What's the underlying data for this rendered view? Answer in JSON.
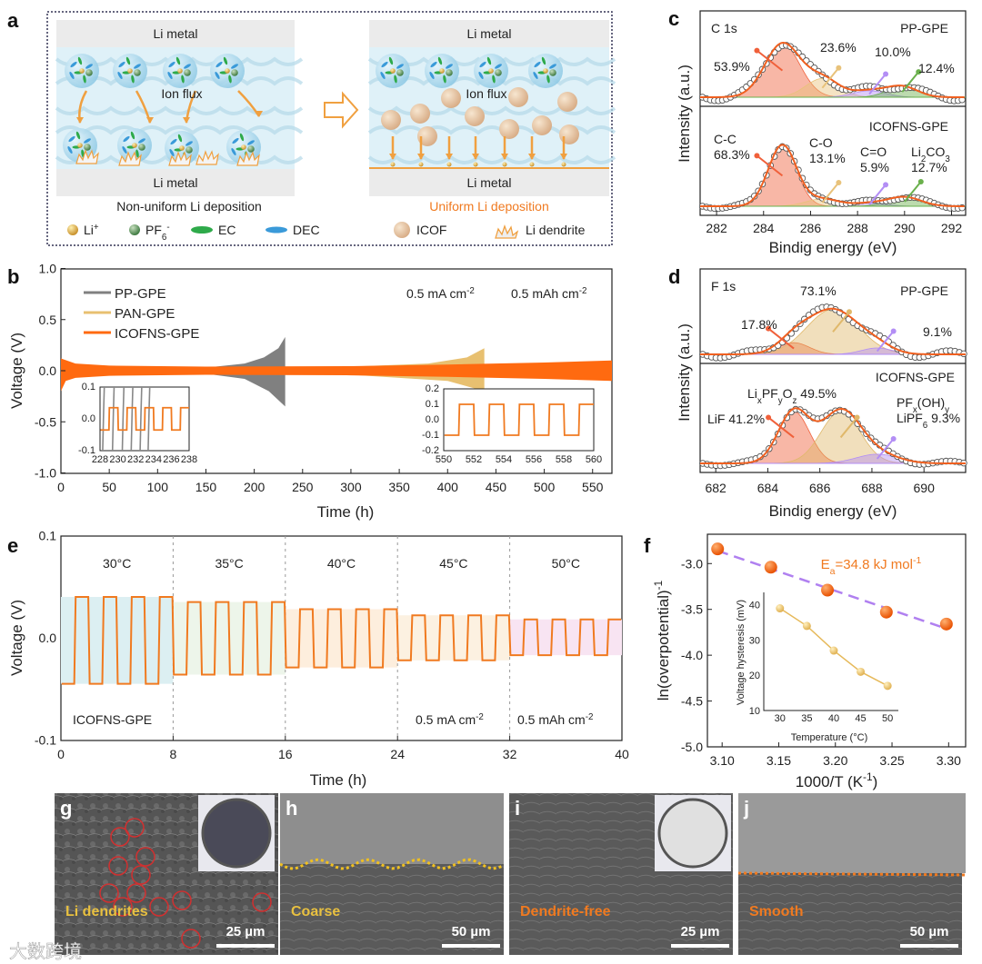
{
  "panel_labels": {
    "a": "a",
    "b": "b",
    "c": "c",
    "d": "d",
    "e": "e",
    "f": "f",
    "g": "g",
    "h": "h",
    "i": "i",
    "j": "j"
  },
  "panel_a": {
    "li_metal": "Li metal",
    "ion_flux": "Ion flux",
    "left_caption": "Non-uniform Li deposition",
    "right_caption": "Uniform Li deposition",
    "legend": [
      "Li^{+}",
      "PF_{6}^{-}",
      "EC",
      "DEC",
      "ICOF",
      "Li dendrite"
    ],
    "colors": {
      "li": "#e3b35a",
      "pf6": "#5f9a5c",
      "ec": "#2eaa4a",
      "dec": "#3a9ad9",
      "icof": "#e6c7a4",
      "arrow": "#f0a040",
      "uniform": "#f07a20"
    }
  },
  "chart_data": [
    {
      "type": "line",
      "id": "b",
      "xlabel": "Time (h)",
      "ylabel": "Voltage (V)",
      "xlim": [
        0,
        570
      ],
      "ylim": [
        -1.0,
        1.0
      ],
      "xticks": [
        0,
        50,
        100,
        150,
        200,
        250,
        300,
        350,
        400,
        450,
        500,
        550
      ],
      "yticks": [
        "1.0",
        "0.5",
        "0.0",
        "-0.5",
        "-1.0"
      ],
      "condition": [
        "0.5 mA cm^{-2}",
        "0.5 mAh cm^{-2}"
      ],
      "series": [
        {
          "name": "PP-GPE",
          "color": "#808080",
          "upper": [
            [
              150,
              0.03
            ],
            [
              190,
              0.07
            ],
            [
              210,
              0.13
            ],
            [
              225,
              0.22
            ],
            [
              232,
              0.33
            ]
          ],
          "lower": [
            [
              150,
              -0.03
            ],
            [
              190,
              -0.08
            ],
            [
              215,
              -0.2
            ],
            [
              232,
              -0.35
            ]
          ]
        },
        {
          "name": "PAN-GPE",
          "color": "#e8c070",
          "upper": [
            [
              300,
              0.04
            ],
            [
              380,
              0.07
            ],
            [
              420,
              0.13
            ],
            [
              438,
              0.22
            ]
          ],
          "lower": [
            [
              300,
              -0.04
            ],
            [
              400,
              -0.1
            ],
            [
              438,
              -0.2
            ]
          ]
        },
        {
          "name": "ICOFNS-GPE",
          "color": "#ff6a10",
          "upper": [
            [
              0,
              0.12
            ],
            [
              15,
              0.07
            ],
            [
              50,
              0.05
            ],
            [
              150,
              0.04
            ],
            [
              300,
              0.045
            ],
            [
              400,
              0.06
            ],
            [
              500,
              0.08
            ],
            [
              570,
              0.1
            ]
          ],
          "lower": [
            [
              0,
              -0.2
            ],
            [
              5,
              -0.1
            ],
            [
              15,
              -0.07
            ],
            [
              50,
              -0.05
            ],
            [
              150,
              -0.04
            ],
            [
              300,
              -0.045
            ],
            [
              400,
              -0.06
            ],
            [
              500,
              -0.08
            ],
            [
              570,
              -0.1
            ]
          ]
        }
      ],
      "insets": [
        {
          "xlim": [
            228,
            238
          ],
          "ylim": [
            -0.1,
            0.1
          ],
          "xticks": [
            228,
            230,
            232,
            234,
            236,
            238
          ],
          "yticks": [
            "0.1",
            "0.0",
            "-0.1"
          ],
          "icofns_amplitude": 0.035,
          "pp_transitions": [
            228.4,
            229.5,
            230.6,
            231.6,
            232.6,
            233.5
          ]
        },
        {
          "xlim": [
            550,
            560
          ],
          "ylim": [
            -0.2,
            0.2
          ],
          "xticks": [
            550,
            552,
            554,
            556,
            558,
            560
          ],
          "yticks": [
            "0.2",
            "0.1",
            "0.0",
            "-0.1",
            "-0.2"
          ],
          "icofns_amplitude": 0.1
        }
      ]
    },
    {
      "type": "scatter",
      "id": "c",
      "title": "C 1s",
      "xlabel": "Bindig energy (eV)",
      "ylabel": "Intensity (a.u.)",
      "xlim": [
        281.3,
        292.6
      ],
      "xticks": [
        282,
        284,
        286,
        288,
        290,
        292
      ],
      "panels": [
        {
          "sample": "PP-GPE",
          "peaks": [
            {
              "center": 284.8,
              "height": 1.0,
              "width": 0.75,
              "label": "53.9%",
              "color": "#f0603a"
            },
            {
              "center": 286.5,
              "height": 0.35,
              "width": 0.7,
              "label": "23.6%",
              "color": "#e8c27a"
            },
            {
              "center": 288.5,
              "height": 0.12,
              "width": 0.7,
              "label": "10.0%",
              "color": "#b38ef5"
            },
            {
              "center": 289.9,
              "height": 0.2,
              "width": 0.65,
              "label": "12.4%",
              "color": "#6ab04c"
            }
          ]
        },
        {
          "sample": "ICOFNS-GPE",
          "peaks": [
            {
              "center": 284.8,
              "height": 1.0,
              "width": 0.6,
              "label": "C-C 68.3%",
              "color": "#f0603a"
            },
            {
              "center": 286.5,
              "height": 0.12,
              "width": 0.7,
              "label": "C-O 13.1%",
              "color": "#e8c27a"
            },
            {
              "center": 288.5,
              "height": 0.05,
              "width": 0.7,
              "label": "C=O 5.9%",
              "color": "#b38ef5"
            },
            {
              "center": 290.0,
              "height": 0.15,
              "width": 0.7,
              "label": "Li_{2}CO_{3} 12.7%",
              "color": "#6ab04c"
            }
          ]
        }
      ]
    },
    {
      "type": "scatter",
      "id": "d",
      "title": "F 1s",
      "xlabel": "Bindig energy (eV)",
      "ylabel": "Intensity (a.u.)",
      "xlim": [
        681.4,
        691.6
      ],
      "xticks": [
        682,
        684,
        686,
        688,
        690
      ],
      "panels": [
        {
          "sample": "PP-GPE",
          "peaks": [
            {
              "center": 685.0,
              "height": 0.22,
              "width": 0.6,
              "label": "17.8%",
              "color": "#f0603a"
            },
            {
              "center": 686.5,
              "height": 0.85,
              "width": 1.0,
              "label": "73.1%",
              "color": "#e0b86a"
            },
            {
              "center": 688.2,
              "height": 0.12,
              "width": 0.6,
              "label": "9.1%",
              "color": "#b38ef5"
            }
          ]
        },
        {
          "sample": "ICOFNS-GPE",
          "peaks": [
            {
              "center": 685.0,
              "height": 0.85,
              "width": 0.6,
              "label": "LiF 41.2%",
              "color": "#f0603a"
            },
            {
              "center": 686.8,
              "height": 0.85,
              "width": 0.75,
              "label": "Li_{x}PF_{y}O_{z} 49.5%",
              "color": "#e0b86a"
            },
            {
              "center": 688.2,
              "height": 0.15,
              "width": 0.8,
              "label": "PF_{x}(OH)_{y} LiPF_{6} 9.3%",
              "color": "#b38ef5"
            }
          ]
        }
      ]
    },
    {
      "type": "line",
      "id": "e",
      "xlabel": "Time (h)",
      "ylabel": "Voltage (V)",
      "xlim": [
        0,
        40
      ],
      "ylim": [
        -0.1,
        0.1
      ],
      "xticks": [
        0,
        8,
        16,
        24,
        32,
        40
      ],
      "yticks": [
        "0.1",
        "0.0",
        "-0.1"
      ],
      "sample": "ICOFNS-GPE",
      "condition": [
        "0.5 mA cm^{-2}",
        "0.5 mAh cm^{-2}"
      ],
      "segments": [
        {
          "temperature": "30°C",
          "high": 0.04,
          "low": -0.045,
          "band": "#dcefF2"
        },
        {
          "temperature": "35°C",
          "high": 0.035,
          "low": -0.036,
          "band": "#edf5ea"
        },
        {
          "temperature": "40°C",
          "high": 0.028,
          "low": -0.029,
          "band": "#fdeedd"
        },
        {
          "temperature": "45°C",
          "high": 0.022,
          "low": -0.022,
          "band": "#fcf1e1"
        },
        {
          "temperature": "50°C",
          "high": 0.018,
          "low": -0.017,
          "band": "#f8e4f2"
        }
      ],
      "color": "#f07a20"
    },
    {
      "type": "scatter",
      "id": "f",
      "xlabel": "1000/T (K^{-1})",
      "ylabel": "ln(overpotential)^{-1}",
      "xlim": [
        3.087,
        3.315
      ],
      "ylim": [
        -5.0,
        -2.68
      ],
      "xticks": [
        "3.10",
        "3.15",
        "3.20",
        "3.25",
        "3.30"
      ],
      "yticks": [
        "-3.0",
        "-3.5",
        "-4.0",
        "-4.5",
        "-5.0"
      ],
      "x": [
        3.096,
        3.143,
        3.193,
        3.245,
        3.298
      ],
      "y": [
        -2.84,
        -3.04,
        -3.29,
        -3.53,
        -3.66
      ],
      "fit": [
        [
          3.096,
          -2.86
        ],
        [
          3.298,
          -3.71
        ]
      ],
      "annotation": "E_{a}=34.8 kJ mol^{-1}",
      "color": "#f06010",
      "fit_color": "#b080f0"
    },
    {
      "type": "line",
      "id": "f-inset",
      "xlabel": "Temperature (°C)",
      "ylabel": "Voltage hysteresis (mV)",
      "xlim": [
        27,
        52
      ],
      "ylim": [
        10,
        43
      ],
      "xticks": [
        30,
        35,
        40,
        45,
        50
      ],
      "yticks": [
        40,
        30,
        20,
        10
      ],
      "x": [
        30,
        35,
        40,
        45,
        50
      ],
      "y": [
        39,
        34,
        27,
        21,
        17
      ],
      "color": "#e6b95a"
    }
  ],
  "sem": {
    "g": {
      "caption": "Li dendrites",
      "scale": "25 µm",
      "caption_color": "#e8c040"
    },
    "h": {
      "caption": "Coarse",
      "scale": "50 µm",
      "caption_color": "#e8c040"
    },
    "i": {
      "caption": "Dendrite-free",
      "scale": "25 µm",
      "caption_color": "#f07a20"
    },
    "j": {
      "caption": "Smooth",
      "scale": "50 µm",
      "caption_color": "#f07a20"
    }
  },
  "watermark": "大数跨境"
}
